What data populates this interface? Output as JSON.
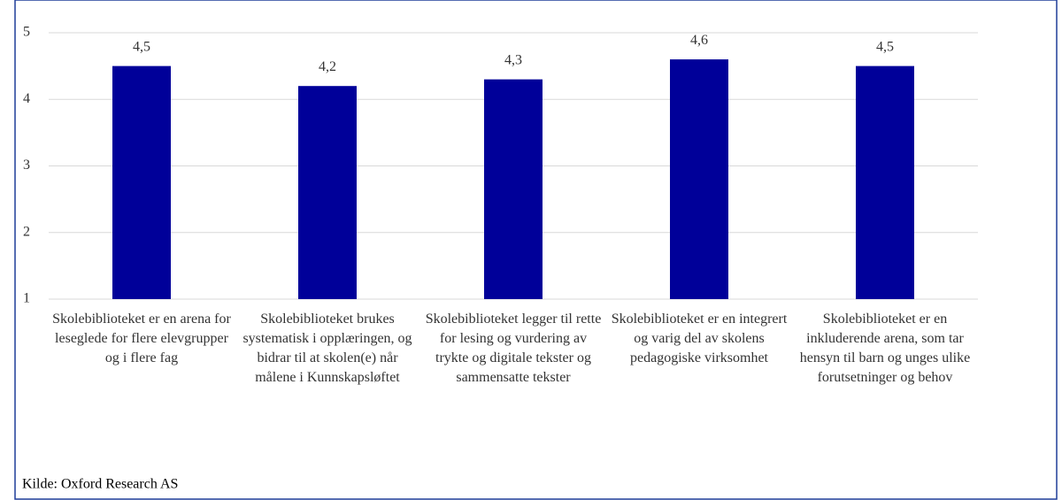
{
  "chart_data": {
    "type": "bar",
    "categories": [
      "Skolebiblioteket er en arena for leseglede for flere elevgrupper og i flere fag",
      "Skolebiblioteket brukes systematisk i opplæringen, og bidrar til at skolen(e) når målene i Kunnskapsløftet",
      "Skolebiblioteket legger til rette for lesing og vurdering av trykte og digitale tekster og sammensatte tekster",
      "Skolebiblioteket er en integrert og varig del av skolens pedagogiske virksomhet",
      "Skolebiblioteket er en inkluderende arena, som tar hensyn til barn og unges ulike forutsetninger og behov"
    ],
    "values": [
      4.5,
      4.2,
      4.3,
      4.6,
      4.5
    ],
    "value_labels": [
      "4,5",
      "4,2",
      "4,3",
      "4,6",
      "4,5"
    ],
    "color": "#000099",
    "ylim": [
      1,
      5
    ],
    "yticks": [
      1,
      2,
      3,
      4,
      5
    ],
    "grid": true,
    "source": "Kilde: Oxford Research AS"
  }
}
